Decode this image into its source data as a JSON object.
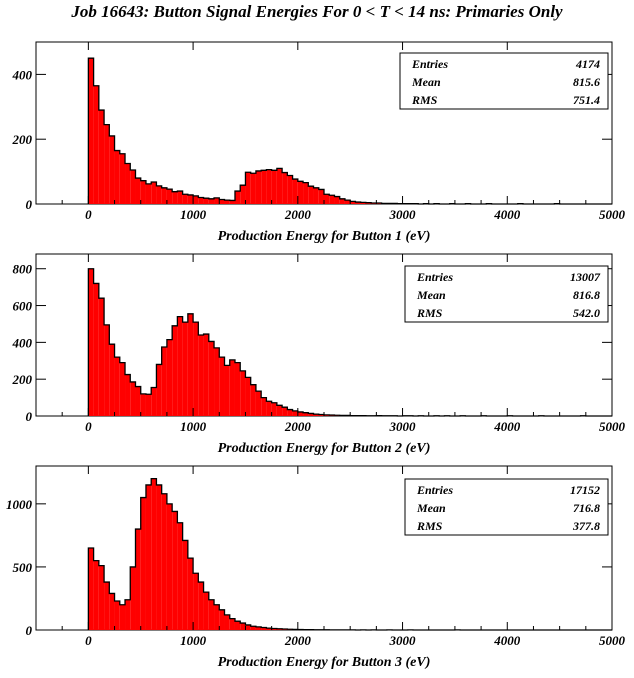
{
  "title": "Job 16643: Button Signal Energies For 0 < T < 14 ns: Primaries Only",
  "chart_data": [
    {
      "type": "bar",
      "xlabel": "Production Energy for Button 1 (eV)",
      "ylabel": "",
      "xlim": [
        -500,
        5000
      ],
      "ylim": [
        0,
        500
      ],
      "xticks": [
        0,
        1000,
        2000,
        3000,
        4000,
        5000
      ],
      "yticks": [
        0,
        200,
        400
      ],
      "bin_width": 50,
      "bin_start": 0,
      "values": [
        450,
        365,
        290,
        245,
        210,
        165,
        155,
        125,
        105,
        80,
        72,
        62,
        68,
        56,
        50,
        46,
        38,
        40,
        30,
        28,
        25,
        20,
        18,
        16,
        19,
        14,
        12,
        11,
        40,
        58,
        98,
        95,
        102,
        104,
        106,
        104,
        110,
        97,
        88,
        77,
        70,
        66,
        55,
        50,
        45,
        30,
        27,
        23,
        16,
        12,
        8,
        6,
        5,
        4,
        3,
        3,
        2,
        2,
        2,
        1,
        1,
        1,
        1,
        0,
        1,
        0,
        1,
        0,
        0,
        1,
        0,
        0,
        1,
        0,
        0,
        0,
        1,
        0,
        0,
        0,
        0,
        0,
        1,
        0,
        0,
        0,
        0,
        0,
        0,
        1,
        0,
        0,
        0,
        0,
        0,
        0,
        0,
        0,
        0,
        0
      ],
      "fill_color": "#ff0000",
      "stats": {
        "Entries": "4174",
        "Mean": "815.6",
        "RMS": "751.4"
      },
      "stats_labels": [
        "Entries",
        "Mean",
        "RMS"
      ],
      "legend_position": "top-right"
    },
    {
      "type": "bar",
      "xlabel": "Production Energy for Button 2 (eV)",
      "ylabel": "",
      "xlim": [
        -500,
        5000
      ],
      "ylim": [
        0,
        880
      ],
      "xticks": [
        0,
        1000,
        2000,
        3000,
        4000,
        5000
      ],
      "yticks": [
        0,
        200,
        400,
        600,
        800
      ],
      "bin_width": 50,
      "bin_start": 0,
      "values": [
        800,
        720,
        640,
        495,
        390,
        320,
        290,
        225,
        185,
        160,
        120,
        118,
        155,
        280,
        375,
        415,
        490,
        540,
        510,
        555,
        510,
        440,
        445,
        405,
        370,
        320,
        275,
        305,
        290,
        245,
        210,
        170,
        135,
        100,
        80,
        72,
        58,
        48,
        35,
        28,
        22,
        18,
        14,
        10,
        8,
        6,
        5,
        4,
        3,
        3,
        2,
        2,
        2,
        1,
        1,
        2,
        1,
        1,
        1,
        0,
        1,
        1,
        0,
        1,
        0,
        0,
        1,
        0,
        1,
        0,
        0,
        1,
        0,
        0,
        0,
        1,
        0,
        0,
        0,
        0,
        1,
        0,
        0,
        0,
        0,
        0,
        1,
        0,
        0,
        0,
        0,
        0,
        0,
        0,
        1,
        0,
        0,
        0,
        0,
        0
      ],
      "fill_color": "#ff0000",
      "stats": {
        "Entries": "13007",
        "Mean": "816.8",
        "RMS": "542.0"
      },
      "stats_labels": [
        "Entries",
        "Mean",
        "RMS"
      ],
      "legend_position": "top-right"
    },
    {
      "type": "bar",
      "xlabel": "Production Energy for Button 3 (eV)",
      "ylabel": "",
      "xlim": [
        -500,
        5000
      ],
      "ylim": [
        0,
        1300
      ],
      "xticks": [
        0,
        1000,
        2000,
        3000,
        4000,
        5000
      ],
      "yticks": [
        0,
        500,
        1000
      ],
      "bin_width": 50,
      "bin_start": 0,
      "values": [
        650,
        550,
        510,
        380,
        290,
        230,
        200,
        240,
        500,
        800,
        1050,
        1150,
        1200,
        1150,
        1080,
        1000,
        940,
        850,
        710,
        570,
        450,
        380,
        300,
        240,
        200,
        160,
        120,
        90,
        70,
        55,
        40,
        30,
        25,
        20,
        15,
        12,
        10,
        8,
        6,
        5,
        4,
        3,
        3,
        2,
        2,
        2,
        1,
        1,
        1,
        1,
        1,
        0,
        1,
        0,
        1,
        0,
        0,
        1,
        0,
        0,
        0,
        1,
        0,
        0,
        0,
        0,
        0,
        0,
        0,
        0,
        1,
        0,
        0,
        0,
        0,
        0,
        0,
        0,
        0,
        0,
        0,
        0,
        0,
        0,
        0,
        0,
        0,
        0,
        0,
        0,
        0,
        0,
        0,
        0,
        0,
        0,
        0,
        0,
        0,
        0
      ],
      "fill_color": "#ff0000",
      "stats": {
        "Entries": "17152",
        "Mean": "716.8",
        "RMS": "377.8"
      },
      "stats_labels": [
        "Entries",
        "Mean",
        "RMS"
      ],
      "legend_position": "top-right"
    }
  ]
}
